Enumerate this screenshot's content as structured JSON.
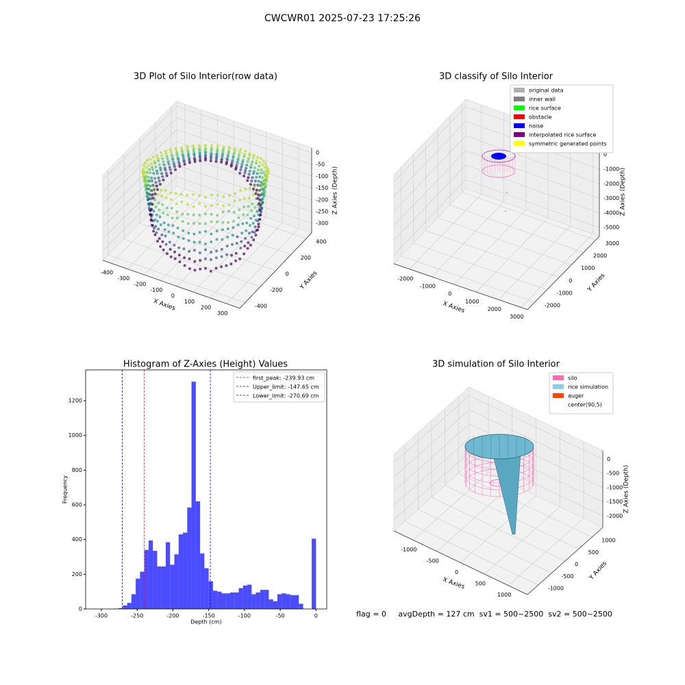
{
  "title": "CWCWR01 2025-07-23 17:25:26",
  "footer": "flag = 0     avgDepth = 127 cm  sv1 = 500~2500  sv2 = 500~2500",
  "chart_data": [
    {
      "type": "scatter3d",
      "title": "3D Plot of Silo Interior(row data)",
      "xlabel": "X Axies",
      "ylabel": "Y Axies",
      "zlabel": "Z Axies (Depth)",
      "xlim": [
        -450,
        380
      ],
      "xticks": [
        -400,
        -300,
        -200,
        -100,
        0,
        100,
        200,
        300
      ],
      "ylim": [
        -470,
        470
      ],
      "yticks": [
        -400,
        -200,
        0,
        200,
        400
      ],
      "zlim": [
        -340,
        20
      ],
      "zticks": [
        0,
        -50,
        -100,
        -150,
        -200,
        -250,
        -300
      ]
    },
    {
      "type": "scatter3d",
      "title": "3D classify of Silo Interior",
      "xlabel": "X Axies",
      "ylabel": "Y Axies",
      "zlabel": "Z Axies (Depth)",
      "xlim": [
        -2700,
        3300
      ],
      "xticks": [
        -2000,
        -1000,
        0,
        1000,
        2000,
        3000
      ],
      "ylim": [
        -2600,
        3300
      ],
      "yticks": [
        -2000,
        -1000,
        0,
        1000,
        2000,
        3000
      ],
      "zlim": [
        -5600,
        500
      ],
      "zticks": [
        0,
        -1000,
        -2000,
        -3000,
        -4000,
        -5000
      ],
      "legend": [
        {
          "name": "original data",
          "color": "#b0b0b0"
        },
        {
          "name": "inner wall",
          "color": "#808080"
        },
        {
          "name": "rice surface",
          "color": "#00ff00"
        },
        {
          "name": "obstacle",
          "color": "#ff0000"
        },
        {
          "name": "noise",
          "color": "#0000ff"
        },
        {
          "name": "interpolated rice surface",
          "color": "#800080"
        },
        {
          "name": "symmetric generated points",
          "color": "#ffff00"
        }
      ]
    },
    {
      "type": "histogram",
      "title": "Histogram of Z-Axies (Height) Values",
      "xlabel": "Depth (cm)",
      "ylabel": "Frequency",
      "color": "#0000ff",
      "alpha": 0.7,
      "xlim": [
        -322,
        15
      ],
      "xticks": [
        -300,
        -250,
        -200,
        -150,
        -100,
        -50,
        0
      ],
      "ylim": [
        0,
        1378
      ],
      "yticks": [
        0,
        200,
        400,
        600,
        800,
        1000,
        1200
      ],
      "bins": [
        -282,
        -276,
        -270,
        -264,
        -258,
        -252,
        -246,
        -240,
        -234,
        -228,
        -222,
        -216,
        -210,
        -204,
        -198,
        -192,
        -186,
        -180,
        -174,
        -168,
        -162,
        -156,
        -150,
        -144,
        -138,
        -132,
        -126,
        -120,
        -114,
        -108,
        -102,
        -96,
        -90,
        -84,
        -78,
        -72,
        -66,
        -60,
        -54,
        -48,
        -42,
        -36,
        -30,
        -24,
        -18,
        -12,
        -6,
        0
      ],
      "counts": [
        2,
        5,
        20,
        35,
        85,
        175,
        215,
        340,
        395,
        335,
        245,
        245,
        385,
        255,
        315,
        430,
        440,
        585,
        1310,
        620,
        320,
        235,
        160,
        105,
        100,
        90,
        90,
        95,
        95,
        120,
        135,
        140,
        85,
        95,
        110,
        110,
        55,
        45,
        85,
        90,
        85,
        80,
        80,
        30,
        0,
        0,
        405
      ],
      "lines": [
        {
          "name": "first_peak: -239.93 cm",
          "value": -239.93,
          "color": "#ff0000"
        },
        {
          "name": "Upper_limit: -147.65 cm",
          "value": -147.65,
          "color": "#0000ff"
        },
        {
          "name": "Lower_limit: -270.69 cm",
          "value": -270.69,
          "color": "#0000ff"
        }
      ]
    },
    {
      "type": "surface3d",
      "title": "3D simulation of Silo Interior",
      "xlabel": "X Axies",
      "ylabel": "Y Axies",
      "zlabel": "Z Axies (Depth)",
      "xlim": [
        -1400,
        1400
      ],
      "xticks": [
        -1000,
        -500,
        0,
        500,
        1000
      ],
      "ylim": [
        -1400,
        1400
      ],
      "yticks": [
        -1000,
        -500,
        0,
        500,
        1000
      ],
      "zlim": [
        -2400,
        300
      ],
      "zticks": [
        0,
        -500,
        -1000,
        -1500,
        -2000
      ],
      "legend": [
        {
          "name": "silo",
          "color": "#ff69b4"
        },
        {
          "name": "rice simulation",
          "color": "#87ceeb"
        },
        {
          "name": "auger",
          "color": "#ff4500"
        },
        {
          "name": "center(90,5)"
        }
      ]
    }
  ]
}
